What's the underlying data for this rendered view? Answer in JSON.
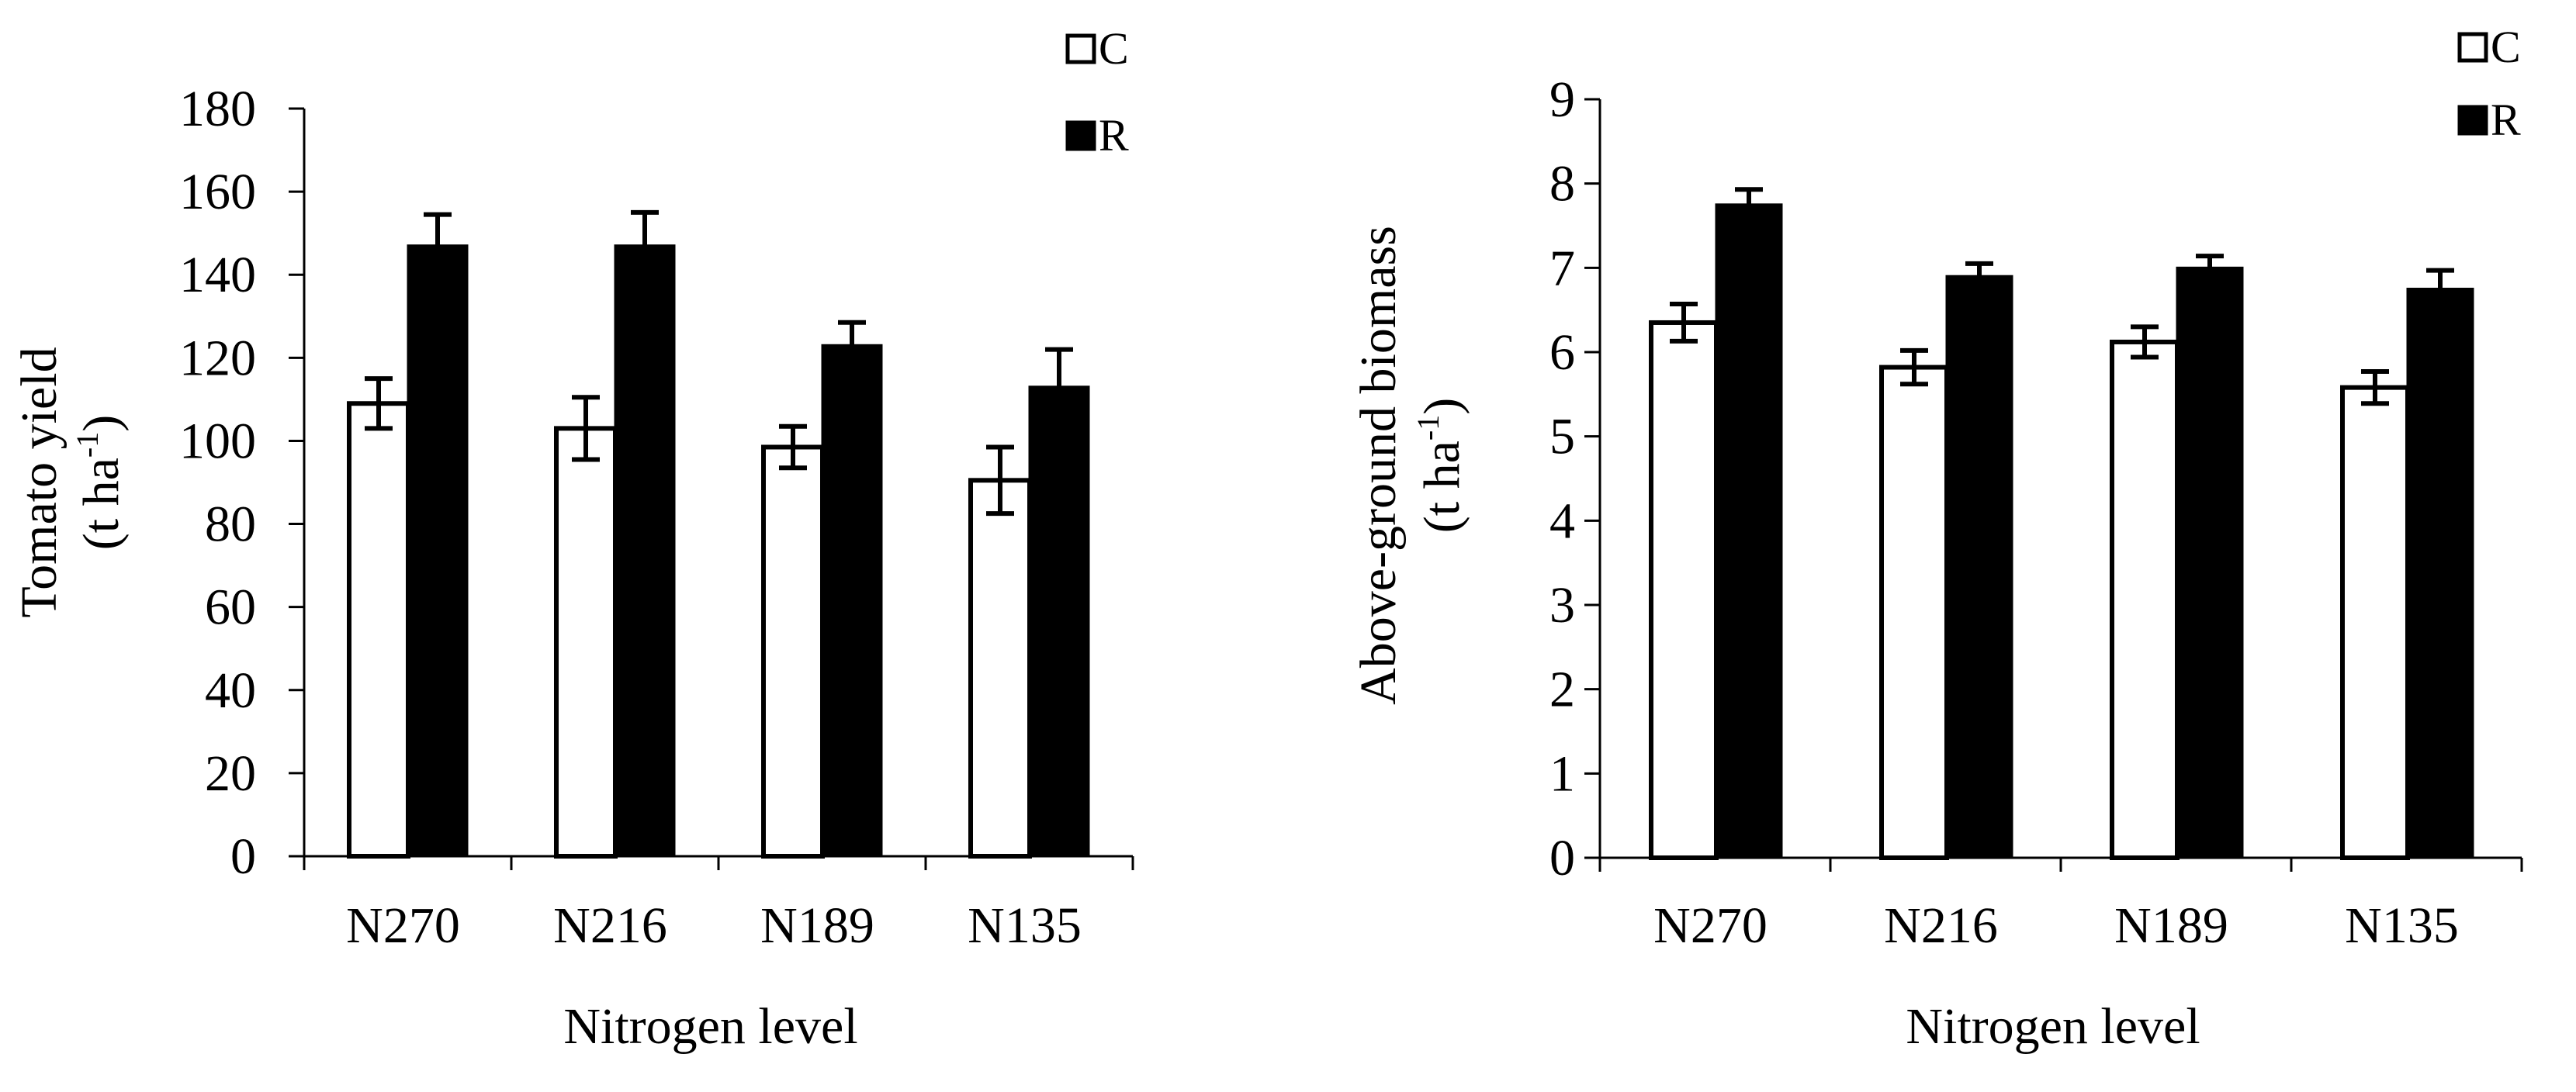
{
  "chart_data": [
    {
      "type": "bar",
      "categories": [
        "N270",
        "N216",
        "N189",
        "N135"
      ],
      "series": [
        {
          "name": "C",
          "values": [
            109,
            103,
            98.5,
            90.5
          ],
          "errors": [
            6,
            7.5,
            5,
            8
          ],
          "color": "#ffffff"
        },
        {
          "name": "R",
          "values": [
            147,
            147,
            123,
            113
          ],
          "errors": [
            7.5,
            8,
            5.5,
            9
          ],
          "color": "#000000"
        }
      ],
      "ylim": [
        0,
        180
      ],
      "yticks": [
        0,
        20,
        40,
        60,
        80,
        100,
        120,
        140,
        160,
        180
      ],
      "ylabel": {
        "line1": "Tomato yield",
        "line2_pre": "(t ha",
        "line2_sup": "-1",
        "line2_post": ")"
      },
      "xlabel": "Nitrogen level",
      "legend": [
        "C",
        "R"
      ],
      "legend_position": "top-right"
    },
    {
      "type": "bar",
      "categories": [
        "N270",
        "N216",
        "N189",
        "N135"
      ],
      "series": [
        {
          "name": "C",
          "values": [
            6.35,
            5.82,
            6.12,
            5.58
          ],
          "errors": [
            0.22,
            0.2,
            0.18,
            0.19
          ],
          "color": "#ffffff"
        },
        {
          "name": "R",
          "values": [
            7.75,
            6.9,
            7.0,
            6.75
          ],
          "errors": [
            0.18,
            0.15,
            0.14,
            0.22
          ],
          "color": "#000000"
        }
      ],
      "ylim": [
        0,
        9
      ],
      "yticks": [
        0,
        1,
        2,
        3,
        4,
        5,
        6,
        7,
        8,
        9
      ],
      "ylabel": {
        "line1": "Above-ground biomass",
        "line2_pre": "(t ha",
        "line2_sup": "-1",
        "line2_post": ")"
      },
      "xlabel": "Nitrogen level",
      "legend": [
        "C",
        "R"
      ],
      "legend_position": "top-right"
    }
  ]
}
